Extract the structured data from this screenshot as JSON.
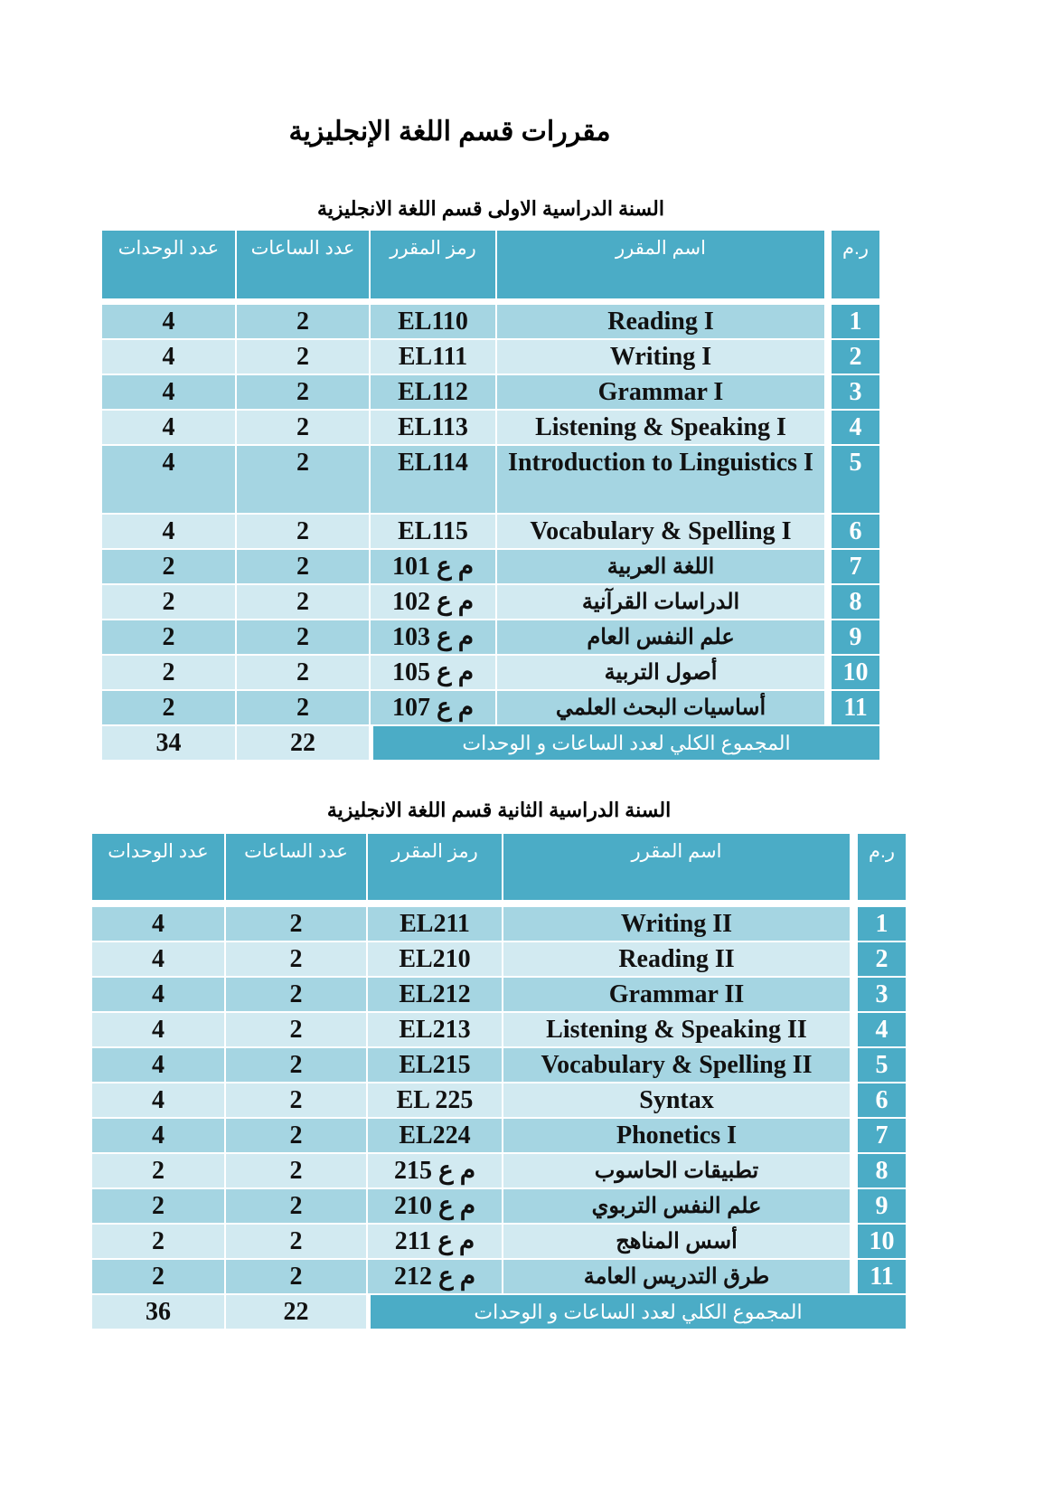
{
  "title": "مقررات قسم اللغة الإنجليزية",
  "colors": {
    "header": "#4bacc6",
    "row_dark": "#a5d5e2",
    "row_light": "#d2eaf1"
  },
  "tables": [
    {
      "subtitle": "السنة الدراسية الاولى قسم اللغة الانجليزية",
      "headers": {
        "units": "عدد الوحدات",
        "hours": "عدد الساعات",
        "code": "رمز المقرر",
        "name": "اسم المقرر",
        "no": "ر.م"
      },
      "rows": [
        {
          "no": "1",
          "name": "Reading I",
          "code": "EL110",
          "hours": "2",
          "units": "4"
        },
        {
          "no": "2",
          "name": "Writing I",
          "code": "EL111",
          "hours": "2",
          "units": "4"
        },
        {
          "no": "3",
          "name": "Grammar I",
          "code": "EL112",
          "hours": "2",
          "units": "4"
        },
        {
          "no": "4",
          "name": "Listening & Speaking I",
          "code": "EL113",
          "hours": "2",
          "units": "4"
        },
        {
          "no": "5",
          "name": "Introduction to Linguistics I",
          "code": "EL114",
          "hours": "2",
          "units": "4"
        },
        {
          "no": "6",
          "name": "Vocabulary & Spelling I",
          "code": "EL115",
          "hours": "2",
          "units": "4"
        },
        {
          "no": "7",
          "name": "اللغة العربية",
          "code": "م ع 101",
          "hours": "2",
          "units": "2"
        },
        {
          "no": "8",
          "name": "الدراسات القرآنية",
          "code": "م ع 102",
          "hours": "2",
          "units": "2"
        },
        {
          "no": "9",
          "name": "علم النفس العام",
          "code": "م ع 103",
          "hours": "2",
          "units": "2"
        },
        {
          "no": "10",
          "name": "أصول التربية",
          "code": "م ع 105",
          "hours": "2",
          "units": "2"
        },
        {
          "no": "11",
          "name": "أساسيات البحث العلمي",
          "code": "م ع 107",
          "hours": "2",
          "units": "2"
        }
      ],
      "total": {
        "label": "المجموع الكلي لعدد الساعات و الوحدات",
        "hours": "22",
        "units": "34"
      }
    },
    {
      "subtitle": "السنة الدراسية الثانية قسم اللغة الانجليزية",
      "headers": {
        "units": "عدد الوحدات",
        "hours": "عدد الساعات",
        "code": "رمز المقرر",
        "name": "اسم المقرر",
        "no": "ر.م"
      },
      "rows": [
        {
          "no": "1",
          "name": "Writing II",
          "code": "EL211",
          "hours": "2",
          "units": "4"
        },
        {
          "no": "2",
          "name": "Reading II",
          "code": "EL210",
          "hours": "2",
          "units": "4"
        },
        {
          "no": "3",
          "name": "Grammar II",
          "code": "EL212",
          "hours": "2",
          "units": "4"
        },
        {
          "no": "4",
          "name": "Listening & Speaking II",
          "code": "EL213",
          "hours": "2",
          "units": "4"
        },
        {
          "no": "5",
          "name": "Vocabulary & Spelling II",
          "code": "EL215",
          "hours": "2",
          "units": "4"
        },
        {
          "no": "6",
          "name": "Syntax",
          "code": "EL 225",
          "hours": "2",
          "units": "4"
        },
        {
          "no": "7",
          "name": "Phonetics I",
          "code": "EL224",
          "hours": "2",
          "units": "4"
        },
        {
          "no": "8",
          "name": "تطبيقات الحاسوب",
          "code": "م ع 215",
          "hours": "2",
          "units": "2"
        },
        {
          "no": "9",
          "name": "علم النفس التربوي",
          "code": "م ع 210",
          "hours": "2",
          "units": "2"
        },
        {
          "no": "10",
          "name": "أسس المناهج",
          "code": "م ع 211",
          "hours": "2",
          "units": "2"
        },
        {
          "no": "11",
          "name": "طرق التدريس العامة",
          "code": "م ع 212",
          "hours": "2",
          "units": "2"
        }
      ],
      "total": {
        "label": "المجموع الكلي لعدد الساعات و الوحدات",
        "hours": "22",
        "units": "36"
      }
    }
  ]
}
